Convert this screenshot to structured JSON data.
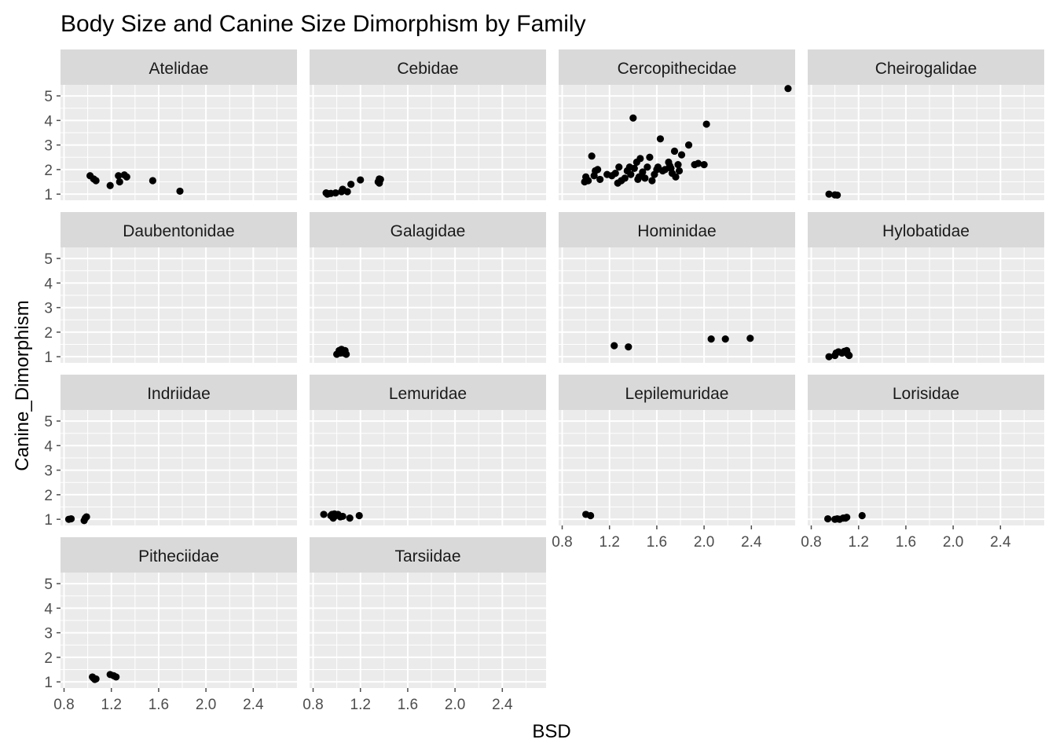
{
  "chart_data": {
    "type": "scatter",
    "title": "Body Size and Canine Size Dimorphism by Family",
    "xlabel": "BSD",
    "ylabel": "Canine_Dimorphism",
    "xlim": [
      0.77,
      2.77
    ],
    "ylim": [
      0.75,
      5.45
    ],
    "x_ticks": [
      "0.8",
      "1.2",
      "1.6",
      "2.0",
      "2.4"
    ],
    "x_tick_values": [
      0.8,
      1.2,
      1.6,
      2.0,
      2.4
    ],
    "y_ticks": [
      "1",
      "2",
      "3",
      "4",
      "5"
    ],
    "y_tick_values": [
      1,
      2,
      3,
      4,
      5
    ],
    "grid": true,
    "colors": {
      "panel_bg": "#EBEBEB",
      "strip_bg": "#D9D9D9",
      "grid": "#FFFFFF",
      "point": "#000000",
      "tick": "#4D4D4D"
    },
    "panels": [
      {
        "family": "Atelidae",
        "points": [
          [
            1.02,
            1.75
          ],
          [
            1.05,
            1.62
          ],
          [
            1.07,
            1.55
          ],
          [
            1.19,
            1.35
          ],
          [
            1.26,
            1.75
          ],
          [
            1.27,
            1.5
          ],
          [
            1.31,
            1.78
          ],
          [
            1.33,
            1.7
          ],
          [
            1.55,
            1.55
          ],
          [
            1.78,
            1.12
          ]
        ]
      },
      {
        "family": "Cebidae",
        "points": [
          [
            0.91,
            1.05
          ],
          [
            0.93,
            1.02
          ],
          [
            0.95,
            1.03
          ],
          [
            0.99,
            1.05
          ],
          [
            1.04,
            1.1
          ],
          [
            1.05,
            1.2
          ],
          [
            1.09,
            1.1
          ],
          [
            1.12,
            1.4
          ],
          [
            1.2,
            1.58
          ],
          [
            1.35,
            1.5
          ],
          [
            1.36,
            1.45
          ],
          [
            1.36,
            1.62
          ],
          [
            1.37,
            1.6
          ],
          [
            0.92,
            1.0
          ]
        ]
      },
      {
        "family": "Cercopithecidae",
        "points": [
          [
            0.99,
            1.5
          ],
          [
            1.0,
            1.7
          ],
          [
            1.02,
            1.55
          ],
          [
            1.05,
            2.55
          ],
          [
            1.07,
            1.75
          ],
          [
            1.08,
            1.95
          ],
          [
            1.1,
            2.0
          ],
          [
            1.12,
            1.6
          ],
          [
            1.18,
            1.8
          ],
          [
            1.22,
            1.75
          ],
          [
            1.25,
            1.85
          ],
          [
            1.27,
            1.45
          ],
          [
            1.28,
            2.1
          ],
          [
            1.3,
            1.55
          ],
          [
            1.33,
            1.65
          ],
          [
            1.35,
            1.95
          ],
          [
            1.37,
            2.1
          ],
          [
            1.38,
            1.8
          ],
          [
            1.4,
            4.1
          ],
          [
            1.41,
            2.05
          ],
          [
            1.43,
            2.3
          ],
          [
            1.44,
            1.6
          ],
          [
            1.45,
            1.7
          ],
          [
            1.46,
            2.45
          ],
          [
            1.48,
            1.9
          ],
          [
            1.5,
            1.65
          ],
          [
            1.52,
            2.1
          ],
          [
            1.54,
            2.5
          ],
          [
            1.56,
            1.55
          ],
          [
            1.58,
            1.8
          ],
          [
            1.61,
            2.1
          ],
          [
            1.63,
            3.25
          ],
          [
            1.65,
            1.95
          ],
          [
            1.67,
            2.0
          ],
          [
            1.7,
            2.3
          ],
          [
            1.72,
            2.05
          ],
          [
            1.73,
            1.85
          ],
          [
            1.75,
            2.75
          ],
          [
            1.76,
            1.7
          ],
          [
            1.78,
            2.2
          ],
          [
            1.79,
            1.95
          ],
          [
            1.81,
            2.6
          ],
          [
            1.87,
            3.0
          ],
          [
            1.92,
            2.2
          ],
          [
            1.95,
            2.25
          ],
          [
            2.0,
            2.2
          ],
          [
            2.02,
            3.85
          ],
          [
            2.71,
            5.3
          ],
          [
            1.71,
            2.15
          ],
          [
            1.6,
            2.0
          ]
        ]
      },
      {
        "family": "Cheirogalidae",
        "points": [
          [
            0.95,
            1.0
          ],
          [
            1.0,
            0.97
          ],
          [
            1.02,
            0.96
          ]
        ]
      },
      {
        "family": "Daubentonidae",
        "points": []
      },
      {
        "family": "Galagidae",
        "points": [
          [
            1.0,
            1.1
          ],
          [
            1.02,
            1.25
          ],
          [
            1.04,
            1.3
          ],
          [
            1.05,
            1.2
          ],
          [
            1.06,
            1.15
          ],
          [
            1.07,
            1.25
          ],
          [
            1.08,
            1.1
          ],
          [
            1.03,
            1.15
          ]
        ]
      },
      {
        "family": "Hominidae",
        "points": [
          [
            1.24,
            1.45
          ],
          [
            1.36,
            1.4
          ],
          [
            2.06,
            1.72
          ],
          [
            2.18,
            1.72
          ],
          [
            2.39,
            1.75
          ]
        ]
      },
      {
        "family": "Hylobatidae",
        "points": [
          [
            0.95,
            1.0
          ],
          [
            1.0,
            1.05
          ],
          [
            1.01,
            1.15
          ],
          [
            1.03,
            1.2
          ],
          [
            1.06,
            1.15
          ],
          [
            1.08,
            1.22
          ],
          [
            1.1,
            1.25
          ],
          [
            1.12,
            1.05
          ],
          [
            1.11,
            1.1
          ]
        ]
      },
      {
        "family": "Indriidae",
        "points": [
          [
            0.84,
            1.0
          ],
          [
            0.86,
            1.02
          ],
          [
            0.97,
            0.95
          ],
          [
            0.98,
            1.05
          ],
          [
            0.99,
            1.1
          ]
        ]
      },
      {
        "family": "Lemuridae",
        "points": [
          [
            0.89,
            1.2
          ],
          [
            0.95,
            1.15
          ],
          [
            0.96,
            1.2
          ],
          [
            0.97,
            1.05
          ],
          [
            0.99,
            1.15
          ],
          [
            1.01,
            1.2
          ],
          [
            1.03,
            1.1
          ],
          [
            1.05,
            1.12
          ],
          [
            1.11,
            1.05
          ],
          [
            1.19,
            1.15
          ],
          [
            0.98,
            1.22
          ]
        ]
      },
      {
        "family": "Lepilemuridae",
        "points": [
          [
            1.0,
            1.2
          ],
          [
            1.04,
            1.15
          ]
        ]
      },
      {
        "family": "Lorisidae",
        "points": [
          [
            0.94,
            1.02
          ],
          [
            1.0,
            1.0
          ],
          [
            1.02,
            1.02
          ],
          [
            1.04,
            1.0
          ],
          [
            1.07,
            1.05
          ],
          [
            1.09,
            1.05
          ],
          [
            1.1,
            1.08
          ],
          [
            1.23,
            1.15
          ]
        ]
      },
      {
        "family": "Pitheciidae",
        "points": [
          [
            1.04,
            1.2
          ],
          [
            1.05,
            1.15
          ],
          [
            1.06,
            1.1
          ],
          [
            1.07,
            1.12
          ],
          [
            1.19,
            1.3
          ],
          [
            1.22,
            1.25
          ],
          [
            1.24,
            1.2
          ]
        ]
      },
      {
        "family": "Tarsiidae",
        "points": []
      }
    ]
  }
}
